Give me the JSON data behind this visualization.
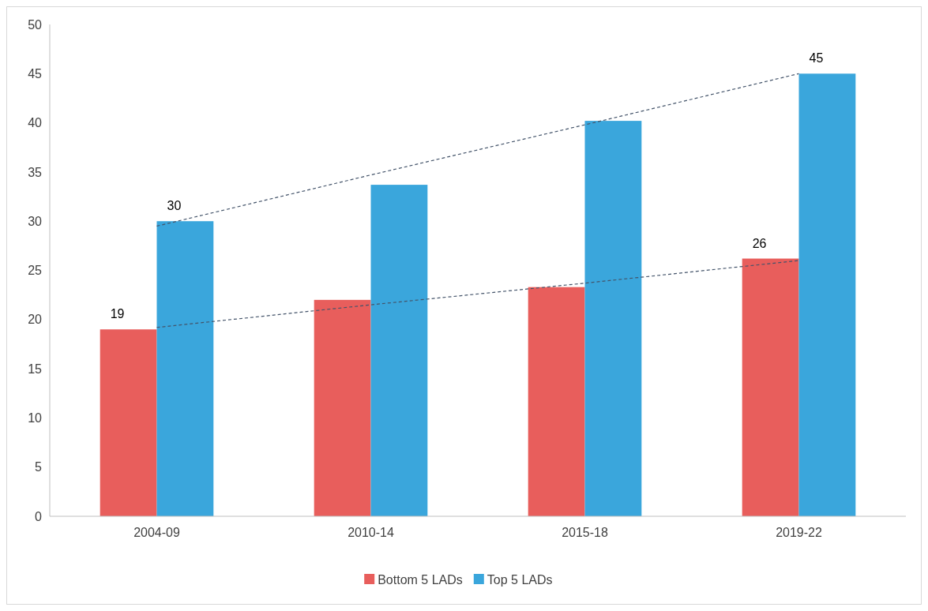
{
  "chart_data": {
    "type": "bar",
    "categories": [
      "2004-09",
      "2010-14",
      "2015-18",
      "2019-22"
    ],
    "series": [
      {
        "name": "Bottom 5 LADs",
        "color": "#e85e5c",
        "values": [
          19,
          22,
          23.3,
          26.2
        ],
        "value_labels": [
          "19",
          null,
          null,
          "26"
        ]
      },
      {
        "name": "Top 5 LADs",
        "color": "#3aa6dc",
        "values": [
          30,
          33.7,
          40.2,
          45
        ],
        "value_labels": [
          "30",
          null,
          null,
          "45"
        ]
      },
      {
        "type": "line",
        "color": "#44546a",
        "line_style": "dashed",
        "marker": "none",
        "values": [
          19.2,
          21.5,
          23.7,
          26
        ]
      },
      {
        "type": "line",
        "color": "#44546a",
        "line_style": "dashed",
        "marker": "none",
        "values": [
          29.5,
          34.7,
          39.8,
          45
        ]
      }
    ],
    "ylim": [
      0,
      50
    ],
    "yticks": [
      0,
      5,
      10,
      15,
      20,
      25,
      30,
      35,
      40,
      45,
      50
    ],
    "grid": false,
    "legend": "bottom"
  }
}
